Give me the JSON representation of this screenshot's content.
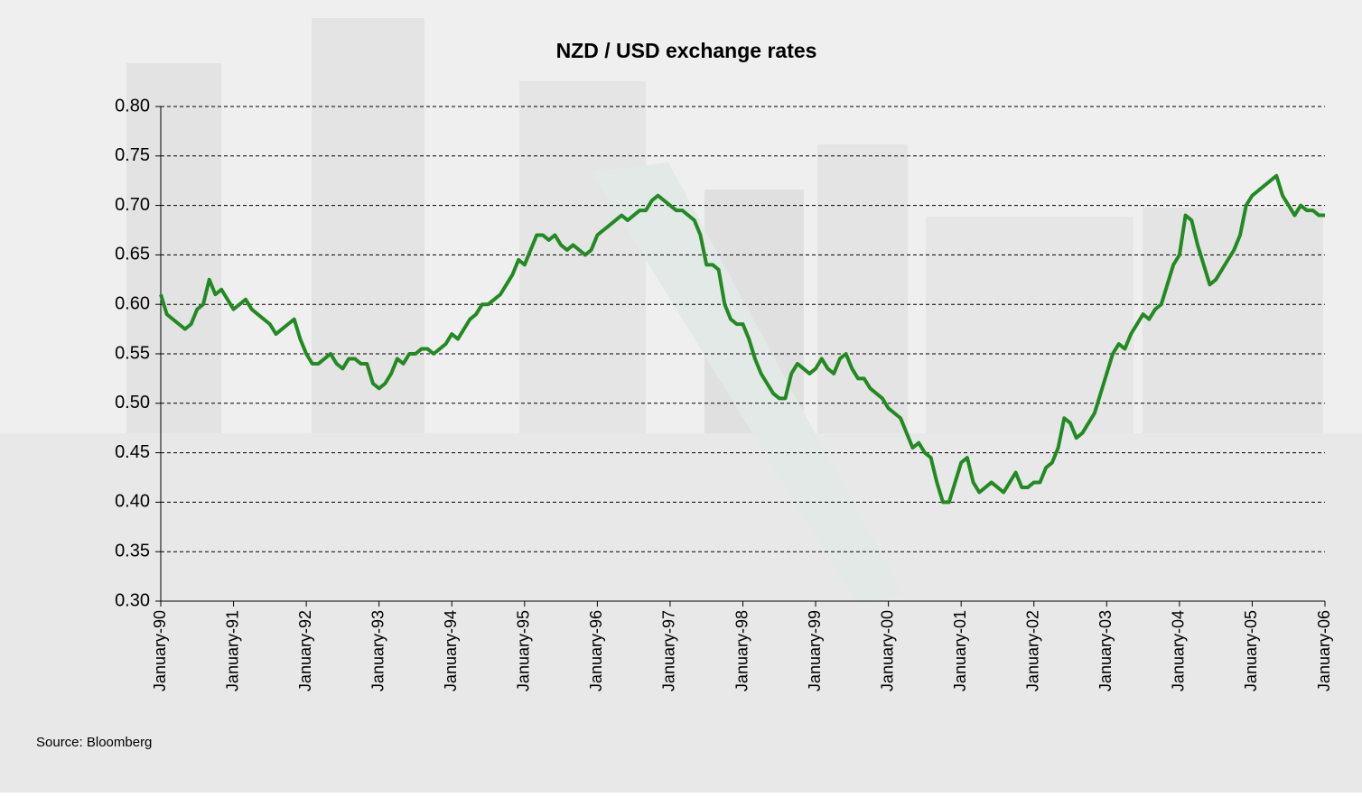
{
  "chart_data": {
    "type": "line",
    "title": "NZD / USD exchange rates",
    "source": "Source: Bloomberg",
    "x": [
      "1990-01",
      "1990-02",
      "1990-03",
      "1990-04",
      "1990-05",
      "1990-06",
      "1990-07",
      "1990-08",
      "1990-09",
      "1990-10",
      "1990-11",
      "1990-12",
      "1991-01",
      "1991-02",
      "1991-03",
      "1991-04",
      "1991-05",
      "1991-06",
      "1991-07",
      "1991-08",
      "1991-09",
      "1991-10",
      "1991-11",
      "1991-12",
      "1992-01",
      "1992-02",
      "1992-03",
      "1992-04",
      "1992-05",
      "1992-06",
      "1992-07",
      "1992-08",
      "1992-09",
      "1992-10",
      "1992-11",
      "1992-12",
      "1993-01",
      "1993-02",
      "1993-03",
      "1993-04",
      "1993-05",
      "1993-06",
      "1993-07",
      "1993-08",
      "1993-09",
      "1993-10",
      "1993-11",
      "1993-12",
      "1994-01",
      "1994-02",
      "1994-03",
      "1994-04",
      "1994-05",
      "1994-06",
      "1994-07",
      "1994-08",
      "1994-09",
      "1994-10",
      "1994-11",
      "1994-12",
      "1995-01",
      "1995-02",
      "1995-03",
      "1995-04",
      "1995-05",
      "1995-06",
      "1995-07",
      "1995-08",
      "1995-09",
      "1995-10",
      "1995-11",
      "1995-12",
      "1996-01",
      "1996-02",
      "1996-03",
      "1996-04",
      "1996-05",
      "1996-06",
      "1996-07",
      "1996-08",
      "1996-09",
      "1996-10",
      "1996-11",
      "1996-12",
      "1997-01",
      "1997-02",
      "1997-03",
      "1997-04",
      "1997-05",
      "1997-06",
      "1997-07",
      "1997-08",
      "1997-09",
      "1997-10",
      "1997-11",
      "1997-12",
      "1998-01",
      "1998-02",
      "1998-03",
      "1998-04",
      "1998-05",
      "1998-06",
      "1998-07",
      "1998-08",
      "1998-09",
      "1998-10",
      "1998-11",
      "1998-12",
      "1999-01",
      "1999-02",
      "1999-03",
      "1999-04",
      "1999-05",
      "1999-06",
      "1999-07",
      "1999-08",
      "1999-09",
      "1999-10",
      "1999-11",
      "1999-12",
      "2000-01",
      "2000-02",
      "2000-03",
      "2000-04",
      "2000-05",
      "2000-06",
      "2000-07",
      "2000-08",
      "2000-09",
      "2000-10",
      "2000-11",
      "2000-12",
      "2001-01",
      "2001-02",
      "2001-03",
      "2001-04",
      "2001-05",
      "2001-06",
      "2001-07",
      "2001-08",
      "2001-09",
      "2001-10",
      "2001-11",
      "2001-12",
      "2002-01",
      "2002-02",
      "2002-03",
      "2002-04",
      "2002-05",
      "2002-06",
      "2002-07",
      "2002-08",
      "2002-09",
      "2002-10",
      "2002-11",
      "2002-12",
      "2003-01",
      "2003-02",
      "2003-03",
      "2003-04",
      "2003-05",
      "2003-06",
      "2003-07",
      "2003-08",
      "2003-09",
      "2003-10",
      "2003-11",
      "2003-12",
      "2004-01",
      "2004-02",
      "2004-03",
      "2004-04",
      "2004-05",
      "2004-06",
      "2004-07",
      "2004-08",
      "2004-09",
      "2004-10",
      "2004-11",
      "2004-12",
      "2005-01",
      "2005-02",
      "2005-03",
      "2005-04",
      "2005-05",
      "2005-06",
      "2005-07",
      "2005-08",
      "2005-09",
      "2005-10",
      "2005-11",
      "2005-12",
      "2006-01"
    ],
    "values": [
      0.61,
      0.59,
      0.585,
      0.58,
      0.575,
      0.58,
      0.595,
      0.6,
      0.625,
      0.61,
      0.615,
      0.605,
      0.595,
      0.6,
      0.605,
      0.595,
      0.59,
      0.585,
      0.58,
      0.57,
      0.575,
      0.58,
      0.585,
      0.565,
      0.55,
      0.54,
      0.54,
      0.545,
      0.55,
      0.54,
      0.535,
      0.545,
      0.545,
      0.54,
      0.54,
      0.52,
      0.515,
      0.52,
      0.53,
      0.545,
      0.54,
      0.55,
      0.55,
      0.555,
      0.555,
      0.55,
      0.555,
      0.56,
      0.57,
      0.565,
      0.575,
      0.585,
      0.59,
      0.6,
      0.6,
      0.605,
      0.61,
      0.62,
      0.63,
      0.645,
      0.64,
      0.655,
      0.67,
      0.67,
      0.665,
      0.67,
      0.66,
      0.655,
      0.66,
      0.655,
      0.65,
      0.655,
      0.67,
      0.675,
      0.68,
      0.685,
      0.69,
      0.685,
      0.69,
      0.695,
      0.695,
      0.705,
      0.71,
      0.705,
      0.7,
      0.695,
      0.695,
      0.69,
      0.685,
      0.67,
      0.64,
      0.64,
      0.635,
      0.6,
      0.585,
      0.58,
      0.58,
      0.565,
      0.545,
      0.53,
      0.52,
      0.51,
      0.505,
      0.505,
      0.53,
      0.54,
      0.535,
      0.53,
      0.535,
      0.545,
      0.535,
      0.53,
      0.545,
      0.55,
      0.535,
      0.525,
      0.525,
      0.515,
      0.51,
      0.505,
      0.495,
      0.49,
      0.485,
      0.47,
      0.455,
      0.46,
      0.45,
      0.445,
      0.42,
      0.4,
      0.4,
      0.42,
      0.44,
      0.445,
      0.42,
      0.41,
      0.415,
      0.42,
      0.415,
      0.41,
      0.42,
      0.43,
      0.415,
      0.415,
      0.42,
      0.42,
      0.435,
      0.44,
      0.455,
      0.485,
      0.48,
      0.465,
      0.47,
      0.48,
      0.49,
      0.51,
      0.53,
      0.55,
      0.56,
      0.555,
      0.57,
      0.58,
      0.59,
      0.585,
      0.595,
      0.6,
      0.62,
      0.64,
      0.65,
      0.69,
      0.685,
      0.66,
      0.64,
      0.62,
      0.625,
      0.635,
      0.645,
      0.655,
      0.67,
      0.7,
      0.71,
      0.715,
      0.72,
      0.725,
      0.73,
      0.71,
      0.7,
      0.69,
      0.7,
      0.695,
      0.695,
      0.69,
      0.69
    ],
    "color": "#238a23",
    "xlim": [
      "1990-01",
      "2006-01"
    ],
    "xticks": [
      {
        "value": "1990-01",
        "label": "January-90"
      },
      {
        "value": "1991-01",
        "label": "January-91"
      },
      {
        "value": "1992-01",
        "label": "January-92"
      },
      {
        "value": "1993-01",
        "label": "January-93"
      },
      {
        "value": "1994-01",
        "label": "January-94"
      },
      {
        "value": "1995-01",
        "label": "January-95"
      },
      {
        "value": "1996-01",
        "label": "January-96"
      },
      {
        "value": "1997-01",
        "label": "January-97"
      },
      {
        "value": "1998-01",
        "label": "January-98"
      },
      {
        "value": "1999-01",
        "label": "January-99"
      },
      {
        "value": "2000-01",
        "label": "January-00"
      },
      {
        "value": "2001-01",
        "label": "January-01"
      },
      {
        "value": "2002-01",
        "label": "January-02"
      },
      {
        "value": "2003-01",
        "label": "January-03"
      },
      {
        "value": "2004-01",
        "label": "January-04"
      },
      {
        "value": "2005-01",
        "label": "January-05"
      },
      {
        "value": "2006-01",
        "label": "January-06"
      }
    ],
    "ylim": [
      0.3,
      0.8
    ],
    "yticks": [
      {
        "value": 0.3,
        "label": "0.30"
      },
      0.35,
      {
        "value": 0.4,
        "label": "0.40"
      },
      0.45,
      {
        "value": 0.5,
        "label": "0.50"
      },
      0.55,
      {
        "value": 0.6,
        "label": "0.60"
      },
      0.65,
      {
        "value": 0.7,
        "label": "0.70"
      },
      0.75,
      {
        "value": 0.8,
        "label": "0.80"
      }
    ],
    "grid": true
  }
}
